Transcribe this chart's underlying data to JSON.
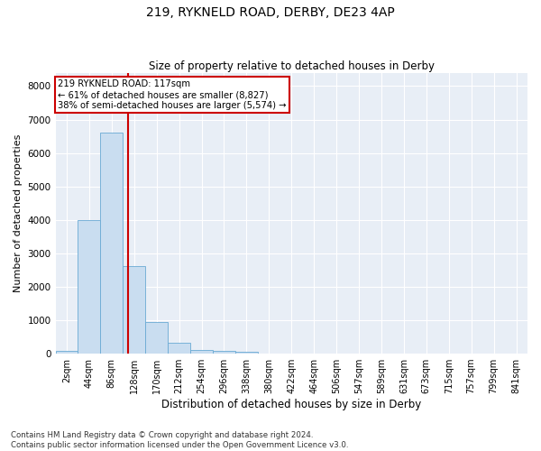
{
  "title1": "219, RYKNELD ROAD, DERBY, DE23 4AP",
  "title2": "Size of property relative to detached houses in Derby",
  "xlabel": "Distribution of detached houses by size in Derby",
  "ylabel": "Number of detached properties",
  "footer1": "Contains HM Land Registry data © Crown copyright and database right 2024.",
  "footer2": "Contains public sector information licensed under the Open Government Licence v3.0.",
  "annotation_line1": "219 RYKNELD ROAD: 117sqm",
  "annotation_line2": "← 61% of detached houses are smaller (8,827)",
  "annotation_line3": "38% of semi-detached houses are larger (5,574) →",
  "bar_color": "#c9ddf0",
  "bar_edge_color": "#6aaad4",
  "vline_color": "#cc0000",
  "background_color": "#e8eef6",
  "grid_color": "#ffffff",
  "categories": [
    "2sqm",
    "44sqm",
    "86sqm",
    "128sqm",
    "170sqm",
    "212sqm",
    "254sqm",
    "296sqm",
    "338sqm",
    "380sqm",
    "422sqm",
    "464sqm",
    "506sqm",
    "547sqm",
    "589sqm",
    "631sqm",
    "673sqm",
    "715sqm",
    "757sqm",
    "799sqm",
    "841sqm"
  ],
  "values": [
    70,
    4000,
    6620,
    2620,
    950,
    320,
    100,
    70,
    50,
    0,
    0,
    0,
    0,
    0,
    0,
    0,
    0,
    0,
    0,
    0,
    0
  ],
  "vline_x": 2.73,
  "ylim": [
    0,
    8400
  ],
  "yticks": [
    0,
    1000,
    2000,
    3000,
    4000,
    5000,
    6000,
    7000,
    8000
  ]
}
